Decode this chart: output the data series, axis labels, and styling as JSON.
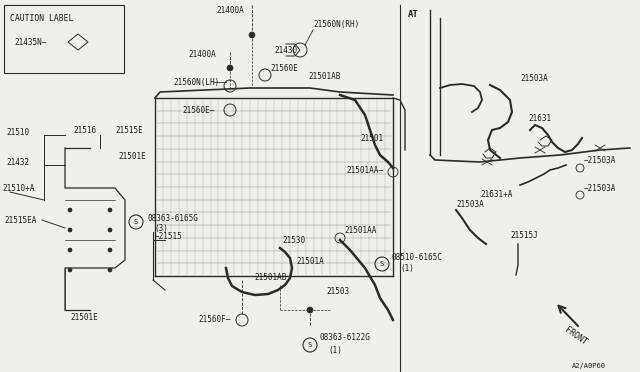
{
  "bg_color": "#f0f0eb",
  "line_color": "#2a2a2a",
  "text_color": "#1a1a1a",
  "caution_label": "CAUTION LABEL",
  "caution_part": "21435N",
  "at_label": "AT",
  "front_label": "FRONT",
  "drawing_number": "A2/A0P60",
  "font_size": 5.5
}
